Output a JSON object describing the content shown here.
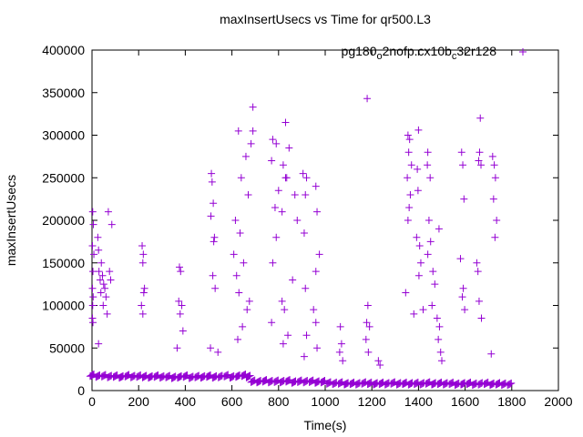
{
  "chart_data": {
    "type": "scatter",
    "title": "maxInsertUsecs vs Time for qr500.L3",
    "xlabel": "Time(s)",
    "ylabel": "maxInsertUsecs",
    "xlim": [
      0,
      2000
    ],
    "ylim": [
      0,
      400000
    ],
    "xticks": [
      "0",
      "200",
      "400",
      "600",
      "800",
      "1000",
      "1200",
      "1400",
      "1600",
      "1800",
      "2000"
    ],
    "yticks": [
      "0",
      "50000",
      "100000",
      "150000",
      "200000",
      "250000",
      "300000",
      "350000",
      "400000"
    ],
    "grid": false,
    "legend_position": "top-right",
    "series": [
      {
        "name": "pg180_o2nofp.cx10b_c32r128",
        "color": "#9400d3",
        "marker": "plus",
        "baseline": [
          [
            0,
            18000
          ],
          [
            25,
            17000
          ],
          [
            50,
            17500
          ],
          [
            75,
            16500
          ],
          [
            100,
            17000
          ],
          [
            125,
            16000
          ],
          [
            150,
            17500
          ],
          [
            175,
            16500
          ],
          [
            200,
            17000
          ],
          [
            225,
            16500
          ],
          [
            250,
            16000
          ],
          [
            275,
            17000
          ],
          [
            300,
            16000
          ],
          [
            325,
            16500
          ],
          [
            350,
            15500
          ],
          [
            375,
            16000
          ],
          [
            400,
            17000
          ],
          [
            425,
            15500
          ],
          [
            450,
            16500
          ],
          [
            475,
            16000
          ],
          [
            500,
            17000
          ],
          [
            525,
            16000
          ],
          [
            550,
            16500
          ],
          [
            575,
            17500
          ],
          [
            600,
            16000
          ],
          [
            625,
            17000
          ],
          [
            650,
            18000
          ],
          [
            670,
            16500
          ],
          [
            690,
            11000
          ],
          [
            715,
            10500
          ],
          [
            740,
            11500
          ],
          [
            765,
            10500
          ],
          [
            790,
            11000
          ],
          [
            815,
            10500
          ],
          [
            840,
            11500
          ],
          [
            865,
            10000
          ],
          [
            890,
            11000
          ],
          [
            915,
            10500
          ],
          [
            940,
            11000
          ],
          [
            965,
            10000
          ],
          [
            990,
            10500
          ],
          [
            1015,
            9000
          ],
          [
            1040,
            8500
          ],
          [
            1065,
            9000
          ],
          [
            1090,
            8000
          ],
          [
            1115,
            8500
          ],
          [
            1140,
            8000
          ],
          [
            1165,
            9000
          ],
          [
            1190,
            8500
          ],
          [
            1215,
            8000
          ],
          [
            1240,
            8500
          ],
          [
            1265,
            8000
          ],
          [
            1290,
            9000
          ],
          [
            1315,
            8000
          ],
          [
            1340,
            8500
          ],
          [
            1365,
            8000
          ],
          [
            1390,
            8500
          ],
          [
            1415,
            8000
          ],
          [
            1440,
            9000
          ],
          [
            1465,
            8000
          ],
          [
            1490,
            8500
          ],
          [
            1515,
            8000
          ],
          [
            1540,
            8500
          ],
          [
            1565,
            7500
          ],
          [
            1590,
            8000
          ],
          [
            1615,
            8500
          ],
          [
            1640,
            7500
          ],
          [
            1665,
            8000
          ],
          [
            1690,
            8500
          ],
          [
            1715,
            7500
          ],
          [
            1740,
            8000
          ],
          [
            1765,
            7500
          ],
          [
            1790,
            7500
          ]
        ],
        "spikes": [
          [
            3,
            210000
          ],
          [
            6,
            195000
          ],
          [
            2,
            170000
          ],
          [
            8,
            160000
          ],
          [
            4,
            140000
          ],
          [
            2,
            120000
          ],
          [
            5,
            110000
          ],
          [
            3,
            100000
          ],
          [
            2,
            85000
          ],
          [
            4,
            80000
          ],
          [
            25,
            180000
          ],
          [
            28,
            165000
          ],
          [
            40,
            150000
          ],
          [
            30,
            140000
          ],
          [
            45,
            135000
          ],
          [
            35,
            130000
          ],
          [
            50,
            125000
          ],
          [
            55,
            120000
          ],
          [
            38,
            115000
          ],
          [
            60,
            110000
          ],
          [
            48,
            100000
          ],
          [
            65,
            90000
          ],
          [
            70,
            210000
          ],
          [
            85,
            195000
          ],
          [
            28,
            55000
          ],
          [
            75,
            140000
          ],
          [
            80,
            130000
          ],
          [
            215,
            170000
          ],
          [
            220,
            160000
          ],
          [
            218,
            150000
          ],
          [
            225,
            120000
          ],
          [
            222,
            115000
          ],
          [
            212,
            100000
          ],
          [
            218,
            90000
          ],
          [
            375,
            145000
          ],
          [
            380,
            140000
          ],
          [
            372,
            105000
          ],
          [
            385,
            100000
          ],
          [
            378,
            90000
          ],
          [
            390,
            70000
          ],
          [
            365,
            50000
          ],
          [
            512,
            255000
          ],
          [
            515,
            245000
          ],
          [
            520,
            220000
          ],
          [
            510,
            205000
          ],
          [
            525,
            180000
          ],
          [
            522,
            175000
          ],
          [
            518,
            135000
          ],
          [
            528,
            120000
          ],
          [
            508,
            50000
          ],
          [
            540,
            45000
          ],
          [
            628,
            305000
          ],
          [
            660,
            275000
          ],
          [
            640,
            250000
          ],
          [
            670,
            230000
          ],
          [
            615,
            200000
          ],
          [
            635,
            185000
          ],
          [
            608,
            160000
          ],
          [
            650,
            150000
          ],
          [
            620,
            135000
          ],
          [
            630,
            115000
          ],
          [
            675,
            105000
          ],
          [
            665,
            95000
          ],
          [
            645,
            75000
          ],
          [
            625,
            60000
          ],
          [
            690,
            333000
          ],
          [
            690,
            305000
          ],
          [
            682,
            290000
          ],
          [
            775,
            295000
          ],
          [
            790,
            290000
          ],
          [
            770,
            270000
          ],
          [
            820,
            265000
          ],
          [
            830,
            250000
          ],
          [
            800,
            235000
          ],
          [
            785,
            215000
          ],
          [
            815,
            210000
          ],
          [
            790,
            180000
          ],
          [
            775,
            150000
          ],
          [
            815,
            105000
          ],
          [
            770,
            80000
          ],
          [
            840,
            65000
          ],
          [
            820,
            55000
          ],
          [
            830,
            315000
          ],
          [
            845,
            285000
          ],
          [
            835,
            250000
          ],
          [
            870,
            230000
          ],
          [
            880,
            200000
          ],
          [
            860,
            130000
          ],
          [
            825,
            95000
          ],
          [
            905,
            255000
          ],
          [
            920,
            250000
          ],
          [
            960,
            240000
          ],
          [
            915,
            230000
          ],
          [
            965,
            210000
          ],
          [
            910,
            185000
          ],
          [
            975,
            160000
          ],
          [
            960,
            140000
          ],
          [
            915,
            120000
          ],
          [
            950,
            95000
          ],
          [
            960,
            80000
          ],
          [
            920,
            65000
          ],
          [
            965,
            50000
          ],
          [
            910,
            40000
          ],
          [
            1065,
            75000
          ],
          [
            1070,
            55000
          ],
          [
            1062,
            45000
          ],
          [
            1075,
            35000
          ],
          [
            1180,
            343000
          ],
          [
            1183,
            100000
          ],
          [
            1178,
            80000
          ],
          [
            1190,
            75000
          ],
          [
            1175,
            60000
          ],
          [
            1185,
            45000
          ],
          [
            1228,
            35000
          ],
          [
            1235,
            30000
          ],
          [
            1355,
            300000
          ],
          [
            1362,
            295000
          ],
          [
            1358,
            280000
          ],
          [
            1370,
            265000
          ],
          [
            1352,
            250000
          ],
          [
            1365,
            230000
          ],
          [
            1360,
            215000
          ],
          [
            1355,
            200000
          ],
          [
            1345,
            115000
          ],
          [
            1380,
            90000
          ],
          [
            1400,
            306000
          ],
          [
            1395,
            260000
          ],
          [
            1398,
            235000
          ],
          [
            1392,
            180000
          ],
          [
            1405,
            170000
          ],
          [
            1410,
            150000
          ],
          [
            1402,
            135000
          ],
          [
            1420,
            95000
          ],
          [
            1440,
            280000
          ],
          [
            1438,
            265000
          ],
          [
            1450,
            250000
          ],
          [
            1445,
            200000
          ],
          [
            1452,
            175000
          ],
          [
            1440,
            160000
          ],
          [
            1462,
            140000
          ],
          [
            1470,
            125000
          ],
          [
            1458,
            100000
          ],
          [
            1480,
            85000
          ],
          [
            1490,
            75000
          ],
          [
            1485,
            60000
          ],
          [
            1495,
            45000
          ],
          [
            1500,
            35000
          ],
          [
            1488,
            190000
          ],
          [
            1585,
            280000
          ],
          [
            1590,
            265000
          ],
          [
            1595,
            225000
          ],
          [
            1580,
            155000
          ],
          [
            1592,
            120000
          ],
          [
            1588,
            110000
          ],
          [
            1598,
            95000
          ],
          [
            1665,
            320000
          ],
          [
            1662,
            280000
          ],
          [
            1658,
            270000
          ],
          [
            1668,
            265000
          ],
          [
            1650,
            150000
          ],
          [
            1655,
            140000
          ],
          [
            1660,
            105000
          ],
          [
            1670,
            85000
          ],
          [
            1718,
            275000
          ],
          [
            1725,
            265000
          ],
          [
            1730,
            250000
          ],
          [
            1722,
            225000
          ],
          [
            1735,
            200000
          ],
          [
            1728,
            180000
          ],
          [
            1712,
            43000
          ]
        ]
      }
    ]
  }
}
